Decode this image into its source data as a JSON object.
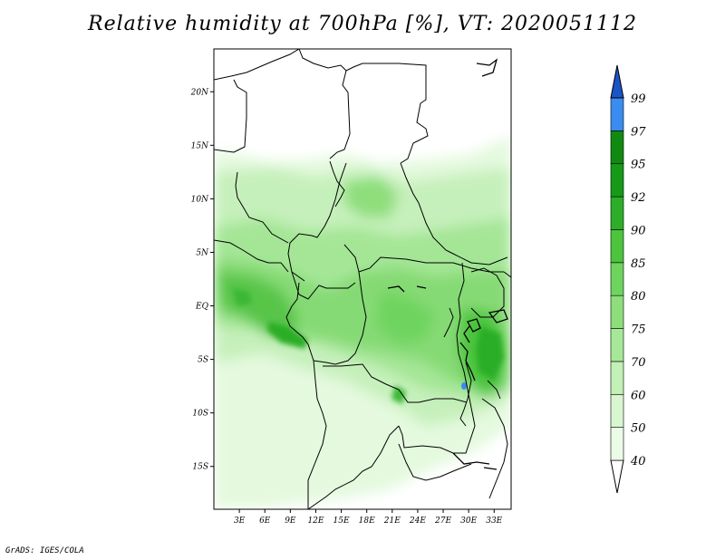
{
  "title": "Relative humidity at 700hPa [%], VT: 2020051112",
  "credit": "GrADS: IGES/COLA",
  "map": {
    "lon_range": [
      0,
      35
    ],
    "lat_range": [
      -19,
      24
    ],
    "lat_ticks": [
      {
        "value": 20,
        "label": "20N"
      },
      {
        "value": 15,
        "label": "15N"
      },
      {
        "value": 10,
        "label": "10N"
      },
      {
        "value": 5,
        "label": "5N"
      },
      {
        "value": 0,
        "label": "EQ"
      },
      {
        "value": -5,
        "label": "5S"
      },
      {
        "value": -10,
        "label": "10S"
      },
      {
        "value": -15,
        "label": "15S"
      }
    ],
    "lon_ticks": [
      {
        "value": 3,
        "label": "3E"
      },
      {
        "value": 6,
        "label": "6E"
      },
      {
        "value": 9,
        "label": "9E"
      },
      {
        "value": 12,
        "label": "12E"
      },
      {
        "value": 15,
        "label": "15E"
      },
      {
        "value": 18,
        "label": "18E"
      },
      {
        "value": 21,
        "label": "21E"
      },
      {
        "value": 24,
        "label": "24E"
      },
      {
        "value": 27,
        "label": "27E"
      },
      {
        "value": 30,
        "label": "30E"
      },
      {
        "value": 33,
        "label": "33E"
      }
    ]
  },
  "colorbar": {
    "levels": [
      {
        "label": "40",
        "color": "#eafbe6"
      },
      {
        "label": "50",
        "color": "#d8f6d0"
      },
      {
        "label": "60",
        "color": "#c2f0b6"
      },
      {
        "label": "70",
        "color": "#a6e898"
      },
      {
        "label": "75",
        "color": "#8ede7c"
      },
      {
        "label": "80",
        "color": "#6ed45e"
      },
      {
        "label": "85",
        "color": "#4cc43e"
      },
      {
        "label": "90",
        "color": "#2cae28"
      },
      {
        "label": "92",
        "color": "#169a18"
      },
      {
        "label": "95",
        "color": "#118a12"
      },
      {
        "label": "97",
        "color": "#3a8cf0"
      },
      {
        "label": "99",
        "color": "#1a6ad8"
      }
    ],
    "top_color": "#1a55c8",
    "bottom_color": "#ffffff"
  }
}
